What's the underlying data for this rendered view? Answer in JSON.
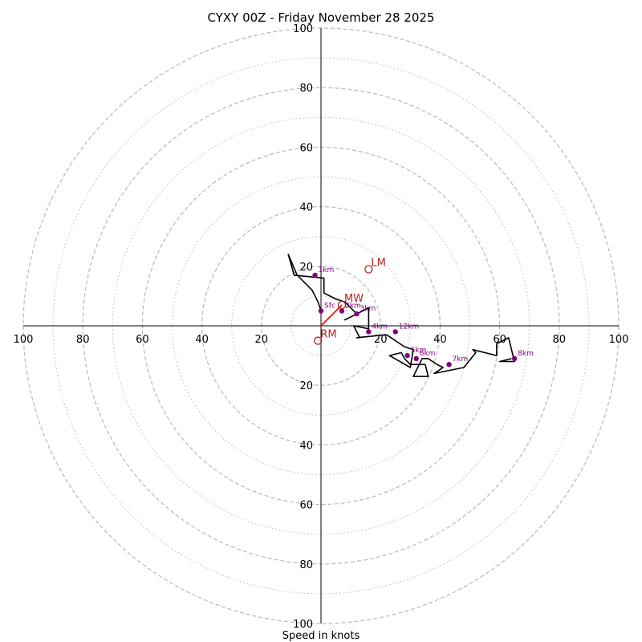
{
  "chart_data": {
    "type": "line",
    "title": "CYXY 00Z - Friday November 28 2025",
    "xlabel": "Speed in knots",
    "range": 100,
    "rings_major": [
      20,
      40,
      60,
      80,
      100
    ],
    "rings_minor": [
      10,
      30,
      50,
      70,
      90
    ],
    "tick_labels": {
      "left": [
        "100",
        "80",
        "60",
        "40",
        "20"
      ],
      "right": [
        "20",
        "40",
        "60",
        "80",
        "100"
      ],
      "up": [
        "20",
        "40",
        "60",
        "80",
        "100"
      ],
      "down": [
        "20",
        "40",
        "60",
        "80",
        "100"
      ]
    },
    "hodograph": {
      "u": [
        0,
        -1,
        -3,
        -7,
        -8,
        -11,
        -9,
        1,
        1,
        5,
        8,
        10,
        12,
        8,
        16,
        16,
        11,
        13,
        12,
        22,
        28,
        31,
        30,
        23,
        27,
        28,
        30,
        35,
        36,
        31,
        34,
        36,
        39,
        41,
        38,
        43,
        48,
        52,
        51,
        59,
        59,
        61,
        63,
        65,
        60,
        64
      ],
      "v": [
        5,
        8,
        12,
        16,
        17,
        24,
        17,
        16,
        11,
        9,
        8,
        6,
        4,
        2,
        6,
        -1,
        0,
        -4,
        -4,
        -3,
        -7,
        -8,
        -14,
        -10,
        -9,
        -11,
        -13,
        -13,
        -17,
        -17,
        -11,
        -11,
        -13,
        -14,
        -16,
        -15,
        -14,
        -9,
        -8,
        -10,
        -6,
        -5,
        -4,
        -12,
        -12,
        -11
      ]
    },
    "height_markers": [
      {
        "label": "Sfc",
        "u": 0,
        "v": 5
      },
      {
        "label": "1km",
        "u": -2,
        "v": 17
      },
      {
        "label": "2km",
        "u": 7,
        "v": 5
      },
      {
        "label": "3km",
        "u": 12,
        "v": 4
      },
      {
        "label": "4km",
        "u": 16,
        "v": -2
      },
      {
        "label": "5km",
        "u": 29,
        "v": -10
      },
      {
        "label": "6km",
        "u": 32,
        "v": -11
      },
      {
        "label": "7km",
        "u": 43,
        "v": -13
      },
      {
        "label": "8km",
        "u": 65,
        "v": -11
      },
      {
        "label": "12km",
        "u": 25,
        "v": -2
      }
    ],
    "motions": [
      {
        "label": "LM",
        "u": 16,
        "v": 19
      },
      {
        "label": "MW",
        "u": 7,
        "v": 7
      },
      {
        "label": "RM",
        "u": -1,
        "v": -5
      }
    ],
    "mean_wind_vector": {
      "u": 7,
      "v": 7
    },
    "colors": {
      "hodograph": "#000000",
      "markers": "#800080",
      "motion": "#b22222",
      "vector": "#ff0000",
      "grid": "#b8b8b8"
    }
  }
}
